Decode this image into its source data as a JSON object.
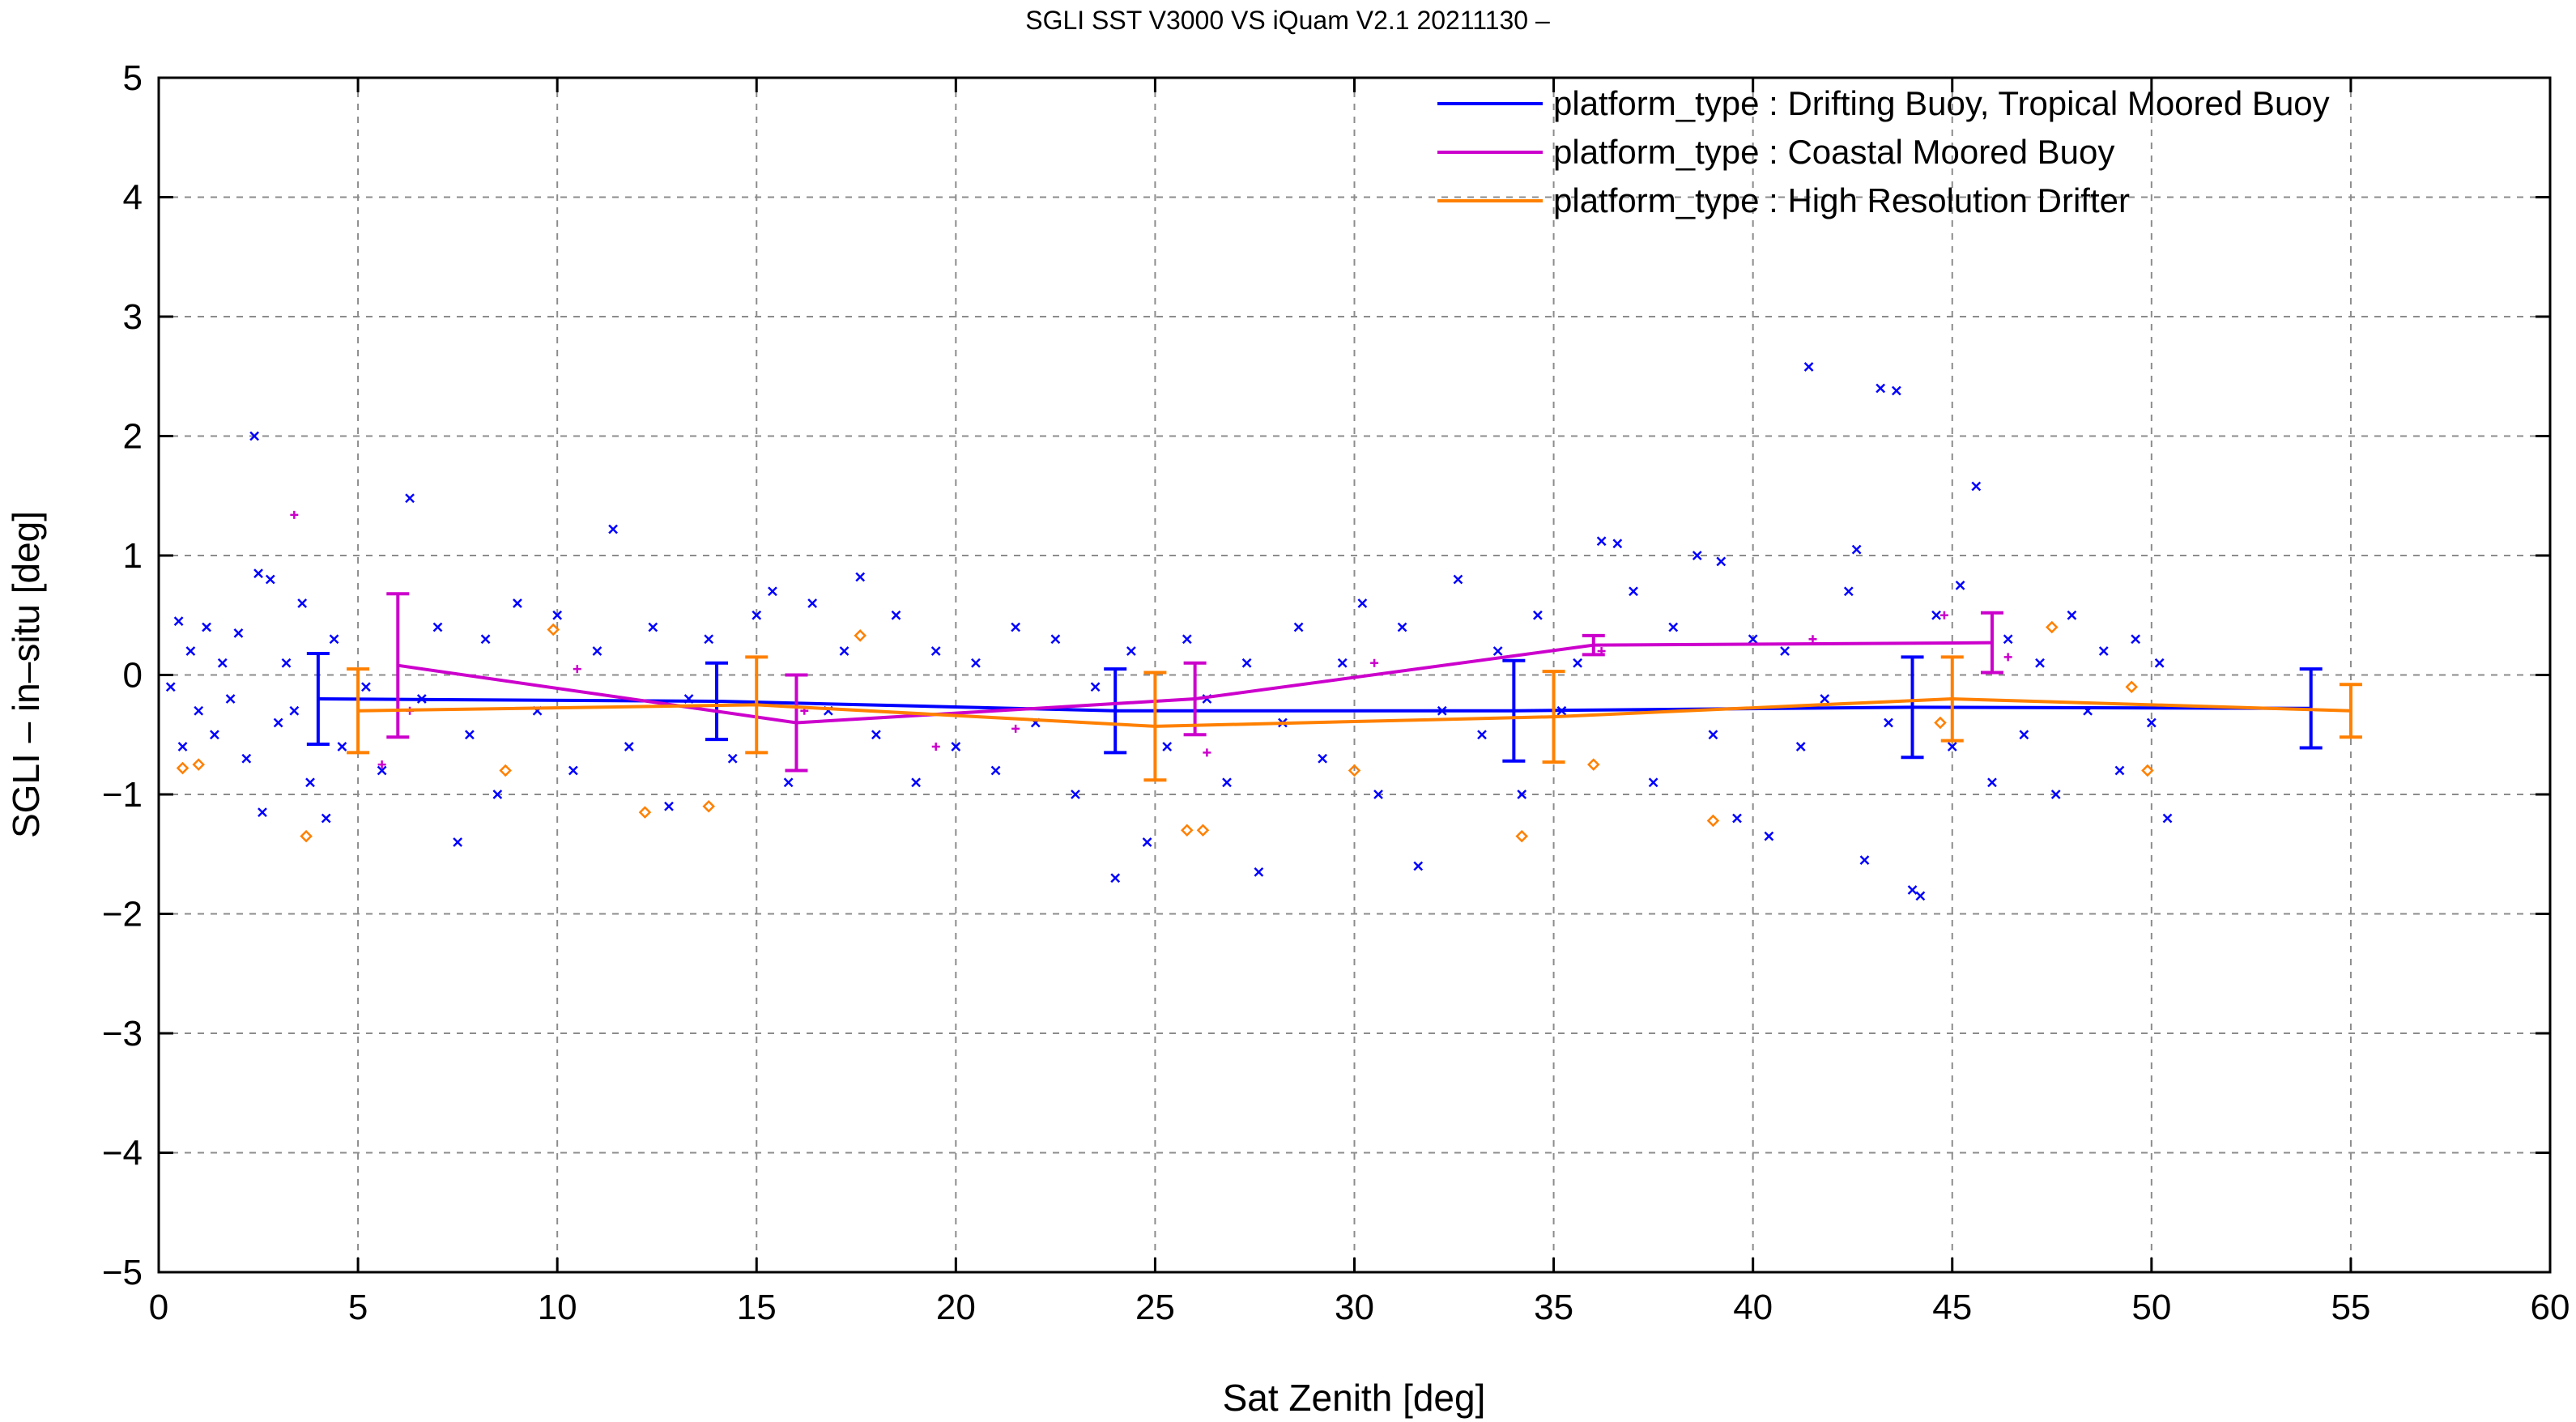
{
  "chart_data": {
    "type": "scatter",
    "title": "SGLI SST V3000 VS iQuam V2.1 20211130 –",
    "xlabel": "Sat Zenith [deg]",
    "ylabel": "SGLI – in–situ [deg]",
    "xlim": [
      0,
      60
    ],
    "ylim": [
      -5,
      5
    ],
    "x_ticks": [
      0,
      5,
      10,
      15,
      20,
      25,
      30,
      35,
      40,
      45,
      50,
      55,
      60
    ],
    "y_ticks": [
      -5,
      -4,
      -3,
      -2,
      -1,
      0,
      1,
      2,
      3,
      4,
      5
    ],
    "grid": true,
    "legend_position": "top-right",
    "series": [
      {
        "name": "platform_type : Drifting Buoy, Tropical Moored Buoy",
        "color": "#0000ff",
        "marker": "cross",
        "line": {
          "x": [
            4,
            14,
            24,
            34,
            44,
            54
          ],
          "mean": [
            -0.2,
            -0.22,
            -0.3,
            -0.3,
            -0.27,
            -0.28
          ],
          "std": [
            0.38,
            0.32,
            0.35,
            0.42,
            0.42,
            0.33
          ]
        },
        "points": [
          [
            0.3,
            -0.1
          ],
          [
            0.5,
            0.45
          ],
          [
            0.6,
            -0.6
          ],
          [
            0.8,
            0.2
          ],
          [
            1.0,
            -0.3
          ],
          [
            1.2,
            0.4
          ],
          [
            1.4,
            -0.5
          ],
          [
            1.6,
            0.1
          ],
          [
            1.8,
            -0.2
          ],
          [
            2.0,
            0.35
          ],
          [
            2.2,
            -0.7
          ],
          [
            2.4,
            2.0
          ],
          [
            2.5,
            0.85
          ],
          [
            2.6,
            -1.15
          ],
          [
            2.8,
            0.8
          ],
          [
            3.0,
            -0.4
          ],
          [
            3.2,
            0.1
          ],
          [
            3.4,
            -0.3
          ],
          [
            3.6,
            0.6
          ],
          [
            3.8,
            -0.9
          ],
          [
            4.2,
            -1.2
          ],
          [
            4.4,
            0.3
          ],
          [
            4.6,
            -0.6
          ],
          [
            5.2,
            -0.1
          ],
          [
            5.6,
            -0.8
          ],
          [
            6.3,
            1.48
          ],
          [
            6.6,
            -0.2
          ],
          [
            7.0,
            0.4
          ],
          [
            7.5,
            -1.4
          ],
          [
            7.8,
            -0.5
          ],
          [
            8.2,
            0.3
          ],
          [
            8.5,
            -1.0
          ],
          [
            9.0,
            0.6
          ],
          [
            9.5,
            -0.3
          ],
          [
            10.0,
            0.5
          ],
          [
            10.4,
            -0.8
          ],
          [
            11.0,
            0.2
          ],
          [
            11.4,
            1.22
          ],
          [
            11.8,
            -0.6
          ],
          [
            12.4,
            0.4
          ],
          [
            12.8,
            -1.1
          ],
          [
            13.3,
            -0.2
          ],
          [
            13.8,
            0.3
          ],
          [
            14.4,
            -0.7
          ],
          [
            15.0,
            0.5
          ],
          [
            15.4,
            0.7
          ],
          [
            15.8,
            -0.9
          ],
          [
            16.4,
            0.6
          ],
          [
            16.8,
            -0.3
          ],
          [
            17.2,
            0.2
          ],
          [
            17.6,
            0.82
          ],
          [
            18.0,
            -0.5
          ],
          [
            18.5,
            0.5
          ],
          [
            19.0,
            -0.9
          ],
          [
            19.5,
            0.2
          ],
          [
            20.0,
            -0.6
          ],
          [
            20.5,
            0.1
          ],
          [
            21.0,
            -0.8
          ],
          [
            21.5,
            0.4
          ],
          [
            22.0,
            -0.4
          ],
          [
            22.5,
            0.3
          ],
          [
            23.0,
            -1.0
          ],
          [
            23.5,
            -0.1
          ],
          [
            24.0,
            -1.7
          ],
          [
            24.4,
            0.2
          ],
          [
            24.8,
            -1.4
          ],
          [
            25.3,
            -0.6
          ],
          [
            25.8,
            0.3
          ],
          [
            26.3,
            -0.2
          ],
          [
            26.8,
            -0.9
          ],
          [
            27.3,
            0.1
          ],
          [
            27.6,
            -1.65
          ],
          [
            28.2,
            -0.4
          ],
          [
            28.6,
            0.4
          ],
          [
            29.2,
            -0.7
          ],
          [
            29.7,
            0.1
          ],
          [
            30.2,
            0.6
          ],
          [
            30.6,
            -1.0
          ],
          [
            31.2,
            0.4
          ],
          [
            31.6,
            -1.6
          ],
          [
            32.2,
            -0.3
          ],
          [
            32.6,
            0.8
          ],
          [
            33.2,
            -0.5
          ],
          [
            33.6,
            0.2
          ],
          [
            34.2,
            -1.0
          ],
          [
            34.6,
            0.5
          ],
          [
            35.2,
            -0.3
          ],
          [
            35.6,
            0.1
          ],
          [
            36.2,
            1.12
          ],
          [
            36.6,
            1.1
          ],
          [
            37.0,
            0.7
          ],
          [
            37.5,
            -0.9
          ],
          [
            38.0,
            0.4
          ],
          [
            38.6,
            1.0
          ],
          [
            39.0,
            -0.5
          ],
          [
            39.2,
            0.95
          ],
          [
            39.6,
            -1.2
          ],
          [
            40.0,
            0.3
          ],
          [
            40.4,
            -1.35
          ],
          [
            40.8,
            0.2
          ],
          [
            41.2,
            -0.6
          ],
          [
            41.4,
            2.58
          ],
          [
            41.8,
            -0.2
          ],
          [
            42.4,
            0.7
          ],
          [
            42.6,
            1.05
          ],
          [
            42.8,
            -1.55
          ],
          [
            43.2,
            2.4
          ],
          [
            43.4,
            -0.4
          ],
          [
            43.6,
            2.38
          ],
          [
            44.0,
            -1.8
          ],
          [
            44.2,
            -1.85
          ],
          [
            44.6,
            0.5
          ],
          [
            45.0,
            -0.6
          ],
          [
            45.2,
            0.75
          ],
          [
            45.6,
            1.58
          ],
          [
            46.0,
            -0.9
          ],
          [
            46.4,
            0.3
          ],
          [
            46.8,
            -0.5
          ],
          [
            47.2,
            0.1
          ],
          [
            47.6,
            -1.0
          ],
          [
            48.0,
            0.5
          ],
          [
            48.4,
            -0.3
          ],
          [
            48.8,
            0.2
          ],
          [
            49.2,
            -0.8
          ],
          [
            49.6,
            0.3
          ],
          [
            50.0,
            -0.4
          ],
          [
            50.4,
            -1.2
          ],
          [
            50.2,
            0.1
          ]
        ]
      },
      {
        "name": "platform_type : Coastal Moored Buoy",
        "color": "#cc00cc",
        "marker": "plus",
        "line": {
          "x": [
            6,
            16,
            26,
            36,
            46
          ],
          "mean": [
            0.08,
            -0.4,
            -0.2,
            0.25,
            0.27
          ],
          "std": [
            0.6,
            0.4,
            0.3,
            0.08,
            0.25
          ]
        },
        "points": [
          [
            3.4,
            1.34
          ],
          [
            5.6,
            -0.75
          ],
          [
            6.3,
            -0.3
          ],
          [
            10.5,
            0.05
          ],
          [
            16.2,
            -0.3
          ],
          [
            19.5,
            -0.6
          ],
          [
            21.5,
            -0.45
          ],
          [
            26.3,
            -0.65
          ],
          [
            30.5,
            0.1
          ],
          [
            36.2,
            0.2
          ],
          [
            41.5,
            0.3
          ],
          [
            44.8,
            0.5
          ],
          [
            46.4,
            0.15
          ]
        ]
      },
      {
        "name": "platform_type : High Resolution Drifter",
        "color": "#ff8000",
        "marker": "diamond",
        "line": {
          "x": [
            5,
            15,
            25,
            35,
            45,
            55
          ],
          "mean": [
            -0.3,
            -0.25,
            -0.43,
            -0.35,
            -0.2,
            -0.3
          ],
          "std": [
            0.35,
            0.4,
            0.45,
            0.38,
            0.35,
            0.22
          ]
        },
        "points": [
          [
            0.6,
            -0.78
          ],
          [
            1.0,
            -0.75
          ],
          [
            3.7,
            -1.35
          ],
          [
            8.7,
            -0.8
          ],
          [
            9.9,
            0.38
          ],
          [
            12.2,
            -1.15
          ],
          [
            13.8,
            -1.1
          ],
          [
            17.6,
            0.33
          ],
          [
            25.8,
            -1.3
          ],
          [
            26.2,
            -1.3
          ],
          [
            30.0,
            -0.8
          ],
          [
            34.2,
            -1.35
          ],
          [
            36.0,
            -0.75
          ],
          [
            39.0,
            -1.22
          ],
          [
            44.7,
            -0.4
          ],
          [
            47.5,
            0.4
          ],
          [
            49.9,
            -0.8
          ],
          [
            49.5,
            -0.1
          ]
        ]
      }
    ]
  }
}
